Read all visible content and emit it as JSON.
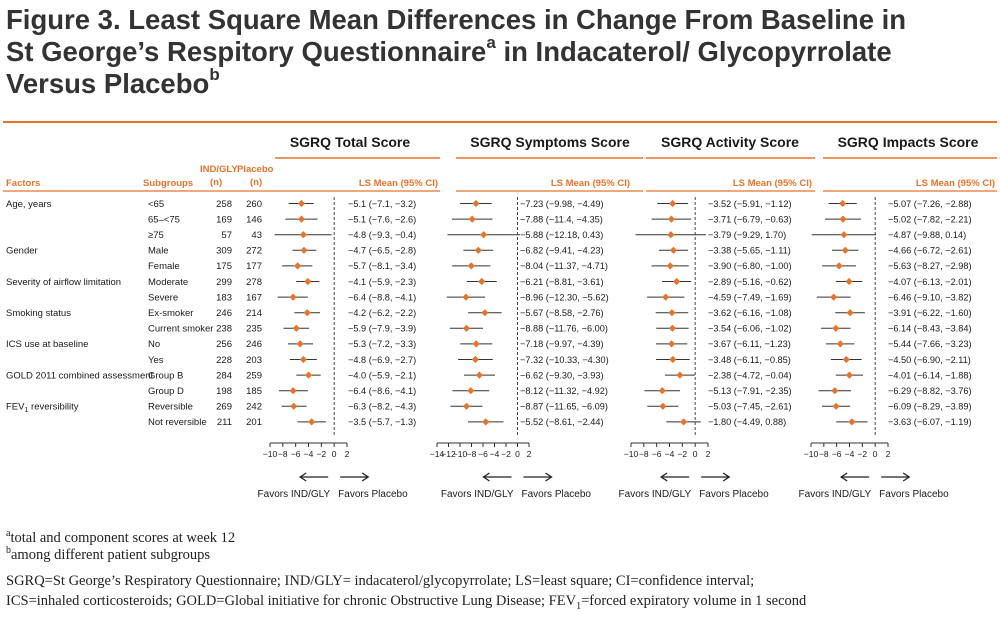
{
  "title": {
    "line1": "Figure 3. Least Square Mean Differences in Change From Baseline in",
    "line2_a": "St George’s Respitory Questionnaire",
    "line2_sup": "a",
    "line2_b": " in Indacaterol/ Glycopyrrolate",
    "line3_a": "Versus Placebo",
    "line3_sup": "b"
  },
  "colors": {
    "accent": "#e8742a",
    "rule": "#e8742a",
    "text": "#1a1a1a"
  },
  "table_headers": {
    "factors": "Factors",
    "subgroups": "Subgroups",
    "ind_gly": "IND/GLY",
    "ind_gly_n": "(n)",
    "placebo": "Placebo",
    "placebo_n": "(n)",
    "ls_mean": "LS Mean (95% CI)"
  },
  "favors_left": "Favors IND/GLY",
  "favors_right": "Favors Placebo",
  "rows": [
    {
      "factor": "Age, years",
      "subgroup": "<65",
      "n_ind": "258",
      "n_pbo": "260"
    },
    {
      "factor": "",
      "subgroup": "65–<75",
      "n_ind": "169",
      "n_pbo": "146"
    },
    {
      "factor": "",
      "subgroup": "≥75",
      "n_ind": "57",
      "n_pbo": "43"
    },
    {
      "factor": "Gender",
      "subgroup": "Male",
      "n_ind": "309",
      "n_pbo": "272"
    },
    {
      "factor": "",
      "subgroup": "Female",
      "n_ind": "175",
      "n_pbo": "177"
    },
    {
      "factor": "Severity of airflow limitation",
      "subgroup": "Moderate",
      "n_ind": "299",
      "n_pbo": "278"
    },
    {
      "factor": "",
      "subgroup": "Severe",
      "n_ind": "183",
      "n_pbo": "167"
    },
    {
      "factor": "Smoking status",
      "subgroup": "Ex-smoker",
      "n_ind": "246",
      "n_pbo": "214"
    },
    {
      "factor": "",
      "subgroup": "Current smoker",
      "n_ind": "238",
      "n_pbo": "235"
    },
    {
      "factor": "ICS use at baseline",
      "subgroup": "No",
      "n_ind": "256",
      "n_pbo": "246"
    },
    {
      "factor": "",
      "subgroup": "Yes",
      "n_ind": "228",
      "n_pbo": "203"
    },
    {
      "factor": "GOLD 2011 combined assessment",
      "subgroup": "Group B",
      "n_ind": "284",
      "n_pbo": "259"
    },
    {
      "factor": "",
      "subgroup": "Group D",
      "n_ind": "198",
      "n_pbo": "185"
    },
    {
      "factor": "FEV",
      "factor_sub": "1",
      "factor_rest": " reversibility",
      "subgroup": "Reversible",
      "n_ind": "269",
      "n_pbo": "242"
    },
    {
      "factor": "",
      "subgroup": "Not reversible",
      "n_ind": "211",
      "n_pbo": "201"
    }
  ],
  "chart_data": [
    {
      "type": "forest",
      "title": "SGRQ Total Score",
      "xlim": [
        -10,
        2
      ],
      "ticks": [
        -10,
        -8,
        -6,
        -4,
        -2,
        0,
        2
      ],
      "tick_labels": [
        "−10",
        "−8",
        "−6",
        "−4",
        "−2",
        "0",
        "2"
      ],
      "points": [
        {
          "mean": -5.1,
          "lo": -7.1,
          "hi": -3.2,
          "label": "−5.1 (−7.1, −3.2)"
        },
        {
          "mean": -5.1,
          "lo": -7.6,
          "hi": -2.6,
          "label": "−5.1 (−7.6, −2.6)"
        },
        {
          "mean": -4.8,
          "lo": -9.3,
          "hi": -0.4,
          "label": "−4.8 (−9.3, −0.4)"
        },
        {
          "mean": -4.7,
          "lo": -6.5,
          "hi": -2.8,
          "label": "−4.7 (−6.5, −2.8)"
        },
        {
          "mean": -5.7,
          "lo": -8.1,
          "hi": -3.4,
          "label": "−5.7 (−8.1, −3.4)"
        },
        {
          "mean": -4.1,
          "lo": -5.9,
          "hi": -2.3,
          "label": "−4.1 (−5.9, −2.3)"
        },
        {
          "mean": -6.4,
          "lo": -8.8,
          "hi": -4.1,
          "label": "−6.4 (−8.8, −4.1)"
        },
        {
          "mean": -4.2,
          "lo": -6.2,
          "hi": -2.2,
          "label": "−4.2 (−6.2, −2.2)"
        },
        {
          "mean": -5.9,
          "lo": -7.9,
          "hi": -3.9,
          "label": "−5.9 (−7.9, −3.9)"
        },
        {
          "mean": -5.3,
          "lo": -7.2,
          "hi": -3.3,
          "label": "−5.3 (−7.2, −3.3)"
        },
        {
          "mean": -4.8,
          "lo": -6.9,
          "hi": -2.7,
          "label": "−4.8 (−6.9, −2.7)"
        },
        {
          "mean": -4.0,
          "lo": -5.9,
          "hi": -2.1,
          "label": "−4.0 (−5.9, −2.1)"
        },
        {
          "mean": -6.4,
          "lo": -8.6,
          "hi": -4.1,
          "label": "−6.4 (−8.6, −4.1)"
        },
        {
          "mean": -6.3,
          "lo": -8.2,
          "hi": -4.3,
          "label": "−6.3 (−8.2, −4.3)"
        },
        {
          "mean": -3.5,
          "lo": -5.7,
          "hi": -1.3,
          "label": "−3.5 (−5.7, −1.3)"
        }
      ]
    },
    {
      "type": "forest",
      "title": "SGRQ Symptoms Score",
      "xlim": [
        -14,
        2
      ],
      "ticks": [
        -14,
        -12,
        -10,
        -8,
        -6,
        -4,
        -2,
        0,
        2
      ],
      "tick_labels": [
        "−14",
        "−12",
        "−10",
        "−8",
        "−6",
        "−4",
        "−2",
        "0",
        "2"
      ],
      "points": [
        {
          "mean": -7.23,
          "lo": -9.98,
          "hi": -4.49,
          "label": "−7.23 (−9.98, −4.49)"
        },
        {
          "mean": -7.88,
          "lo": -11.4,
          "hi": -4.35,
          "label": "−7.88 (−11.4, −4.35)"
        },
        {
          "mean": -5.88,
          "lo": -12.18,
          "hi": 0.43,
          "label": "−5.88 (−12.18, 0.43)"
        },
        {
          "mean": -6.82,
          "lo": -9.41,
          "hi": -4.23,
          "label": "−6.82 (−9.41, −4.23)"
        },
        {
          "mean": -8.04,
          "lo": -11.37,
          "hi": -4.71,
          "label": "−8.04 (−11.37, −4.71)"
        },
        {
          "mean": -6.21,
          "lo": -8.81,
          "hi": -3.61,
          "label": "−6.21 (−8.81, −3.61)"
        },
        {
          "mean": -8.96,
          "lo": -12.3,
          "hi": -5.62,
          "label": "−8.96 (−12.30, −5.62)"
        },
        {
          "mean": -5.67,
          "lo": -8.58,
          "hi": -2.76,
          "label": "−5.67 (−8.58, −2.76)"
        },
        {
          "mean": -8.88,
          "lo": -11.76,
          "hi": -6.0,
          "label": "−8.88 (−11.76, −6.00)"
        },
        {
          "mean": -7.18,
          "lo": -9.97,
          "hi": -4.39,
          "label": "−7.18 (−9.97, −4.39)"
        },
        {
          "mean": -7.32,
          "lo": -10.33,
          "hi": -4.3,
          "label": "−7.32 (−10.33, −4.30)"
        },
        {
          "mean": -6.62,
          "lo": -9.3,
          "hi": -3.93,
          "label": "−6.62 (−9.30, −3.93)"
        },
        {
          "mean": -8.12,
          "lo": -11.32,
          "hi": -4.92,
          "label": "−8.12 (−11.32, −4.92)"
        },
        {
          "mean": -8.87,
          "lo": -11.65,
          "hi": -6.09,
          "label": "−8.87 (−11.65, −6.09)"
        },
        {
          "mean": -5.52,
          "lo": -8.61,
          "hi": -2.44,
          "label": "−5.52 (−8.61, −2.44)"
        }
      ]
    },
    {
      "type": "forest",
      "title": "SGRQ Activity Score",
      "xlim": [
        -10,
        2
      ],
      "ticks": [
        -10,
        -8,
        -6,
        -4,
        -2,
        0,
        2
      ],
      "tick_labels": [
        "−10",
        "−8",
        "−6",
        "−4",
        "−2",
        "0",
        "2"
      ],
      "points": [
        {
          "mean": -3.52,
          "lo": -5.91,
          "hi": -1.12,
          "label": "−3.52 (−5.91, −1.12)"
        },
        {
          "mean": -3.71,
          "lo": -6.79,
          "hi": -0.63,
          "label": "−3.71 (−6.79, −0.63)"
        },
        {
          "mean": -3.79,
          "lo": -9.29,
          "hi": 1.7,
          "label": "−3.79 (−9.29, 1.70)"
        },
        {
          "mean": -3.38,
          "lo": -5.65,
          "hi": -1.11,
          "label": "−3.38 (−5.65, −1.11)"
        },
        {
          "mean": -3.9,
          "lo": -6.8,
          "hi": -1.0,
          "label": "−3.90 (−6.80, −1.00)"
        },
        {
          "mean": -2.89,
          "lo": -5.16,
          "hi": -0.62,
          "label": "−2.89 (−5.16, −0.62)"
        },
        {
          "mean": -4.59,
          "lo": -7.49,
          "hi": -1.69,
          "label": "−4.59 (−7.49, −1.69)"
        },
        {
          "mean": -3.62,
          "lo": -6.16,
          "hi": -1.08,
          "label": "−3.62 (−6.16, −1.08)"
        },
        {
          "mean": -3.54,
          "lo": -6.06,
          "hi": -1.02,
          "label": "−3.54 (−6.06, −1.02)"
        },
        {
          "mean": -3.67,
          "lo": -6.11,
          "hi": -1.23,
          "label": "−3.67 (−6.11, −1.23)"
        },
        {
          "mean": -3.48,
          "lo": -6.11,
          "hi": -0.85,
          "label": "−3.48 (−6.11, −0.85)"
        },
        {
          "mean": -2.38,
          "lo": -4.72,
          "hi": -0.04,
          "label": "−2.38 (−4.72, −0.04)"
        },
        {
          "mean": -5.13,
          "lo": -7.91,
          "hi": -2.35,
          "label": "−5.13 (−7.91, −2.35)"
        },
        {
          "mean": -5.03,
          "lo": -7.45,
          "hi": -2.61,
          "label": "−5.03 (−7.45, −2.61)"
        },
        {
          "mean": -1.8,
          "lo": -4.49,
          "hi": 0.88,
          "label": "−1.80 (−4.49, 0.88)"
        }
      ]
    },
    {
      "type": "forest",
      "title": "SGRQ Impacts Score",
      "xlim": [
        -10,
        2
      ],
      "ticks": [
        -10,
        -8,
        -6,
        -4,
        -2,
        0,
        2
      ],
      "tick_labels": [
        "−10",
        "−8",
        "−6",
        "−4",
        "−2",
        "0",
        "2"
      ],
      "points": [
        {
          "mean": -5.07,
          "lo": -7.26,
          "hi": -2.88,
          "label": "−5.07 (−7.26, −2.88)"
        },
        {
          "mean": -5.02,
          "lo": -7.82,
          "hi": -2.21,
          "label": "−5.02 (−7.82, −2.21)"
        },
        {
          "mean": -4.87,
          "lo": -9.88,
          "hi": 0.14,
          "label": "−4.87 (−9.88, 0.14)"
        },
        {
          "mean": -4.66,
          "lo": -6.72,
          "hi": -2.61,
          "label": "−4.66 (−6.72, −2.61)"
        },
        {
          "mean": -5.63,
          "lo": -8.27,
          "hi": -2.98,
          "label": "−5.63 (−8.27, −2.98)"
        },
        {
          "mean": -4.07,
          "lo": -6.13,
          "hi": -2.01,
          "label": "−4.07 (−6.13, −2.01)"
        },
        {
          "mean": -6.46,
          "lo": -9.1,
          "hi": -3.82,
          "label": "−6.46 (−9.10, −3.82)"
        },
        {
          "mean": -3.91,
          "lo": -6.22,
          "hi": -1.6,
          "label": "−3.91 (−6.22, −1.60)"
        },
        {
          "mean": -6.14,
          "lo": -8.43,
          "hi": -3.84,
          "label": "−6.14 (−8.43, −3.84)"
        },
        {
          "mean": -5.44,
          "lo": -7.66,
          "hi": -3.23,
          "label": "−5.44 (−7.66, −3.23)"
        },
        {
          "mean": -4.5,
          "lo": -6.9,
          "hi": -2.11,
          "label": "−4.50 (−6.90, −2.11)"
        },
        {
          "mean": -4.01,
          "lo": -6.14,
          "hi": -1.88,
          "label": "−4.01 (−6.14, −1.88)"
        },
        {
          "mean": -6.29,
          "lo": -8.82,
          "hi": -3.76,
          "label": "−6.29 (−8.82, −3.76)"
        },
        {
          "mean": -6.09,
          "lo": -8.29,
          "hi": -3.89,
          "label": "−6.09 (−8.29, −3.89)"
        },
        {
          "mean": -3.63,
          "lo": -6.07,
          "hi": -1.19,
          "label": "−3.63 (−6.07, −1.19)"
        }
      ]
    }
  ],
  "footnotes": {
    "a_mark": "a",
    "a_text": "total and component scores at week 12",
    "b_mark": "b",
    "b_text": "among different patient subgroups"
  },
  "abbreviations": {
    "line1": "SGRQ=St George’s Respiratory Questionnaire; IND/GLY= indacaterol/glycopyrrolate; LS=least square; CI=confidence interval;",
    "line2_a": "ICS=inhaled corticosteroids; GOLD=Global initiative for chronic Obstructive Lung Disease; FEV",
    "line2_sub": "1",
    "line2_b": "=forced expiratory volume in 1 second"
  }
}
